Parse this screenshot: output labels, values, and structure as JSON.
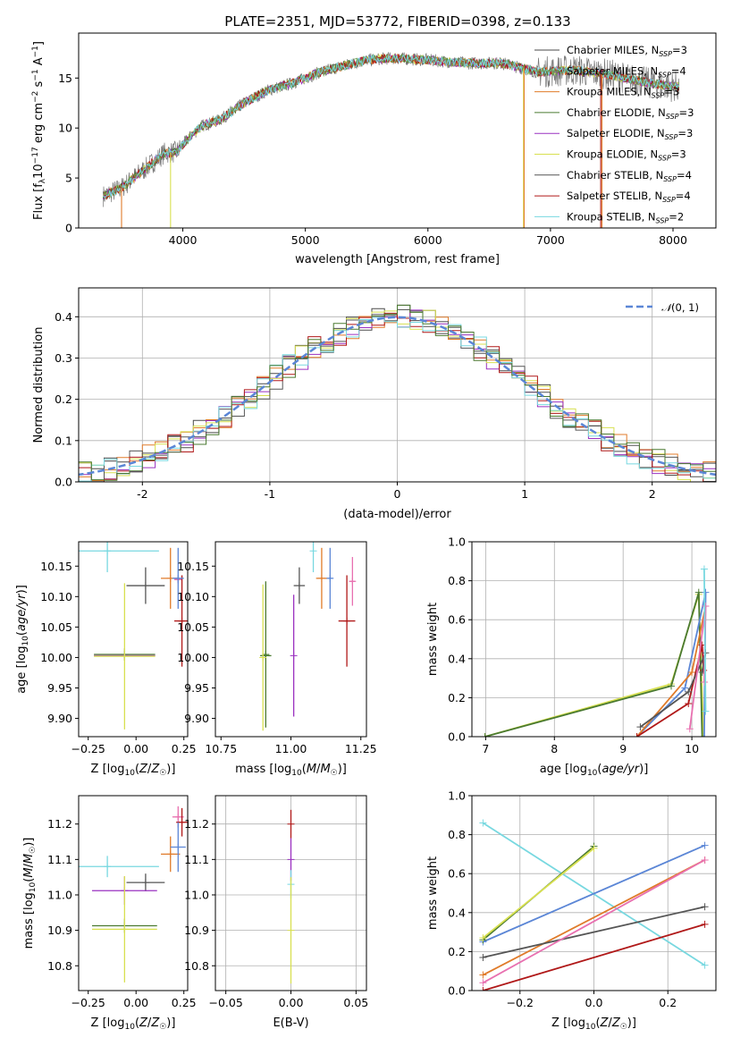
{
  "title": "PLATE=2351, MJD=53772, FIBERID=0398, z=0.133",
  "colors": {
    "Chabrier MILES": "#4a4a4a",
    "Salpeter MILES": "#6fa05a",
    "Kroupa MILES": "#e07b2a",
    "Chabrier ELODIE": "#4a7a30",
    "Salpeter ELODIE": "#9a30c0",
    "Kroupa ELODIE": "#d8e050",
    "Chabrier STELIB": "#555555",
    "Salpeter STELIB": "#b01818",
    "Kroupa STELIB": "#78d8e0",
    "blue": "#5b86d6",
    "pink": "#e870b0",
    "green": "#7ab850"
  },
  "chart_data": [
    {
      "type": "line",
      "id": "spectrum",
      "title": "PLATE=2351, MJD=53772, FIBERID=0398, z=0.133",
      "xlabel": "wavelength [Angstrom, rest frame]",
      "ylabel": "Flux [fλ10⁻¹⁷ erg cm⁻² s⁻¹ A⁻¹]",
      "xlim": [
        3150,
        8350
      ],
      "ylim": [
        0,
        19.5
      ],
      "xticks": [
        4000,
        5000,
        6000,
        7000,
        8000
      ],
      "yticks": [
        0,
        5,
        10,
        15
      ],
      "legend_placement": "right",
      "continuum": {
        "x": [
          3350,
          3500,
          3700,
          3850,
          3950,
          4050,
          4150,
          4300,
          4500,
          4700,
          4900,
          5100,
          5300,
          5500,
          5700,
          6000,
          6300,
          6600,
          6900,
          7200,
          7500,
          7800,
          8050
        ],
        "y": [
          3.2,
          4.0,
          6.0,
          7.5,
          7.6,
          9.0,
          10.2,
          10.8,
          12.5,
          13.8,
          14.5,
          15.5,
          16.2,
          16.8,
          17.0,
          16.8,
          16.5,
          16.5,
          15.6,
          15.8,
          15.3,
          14.5,
          14.1
        ]
      },
      "series": [
        {
          "name": "Chabrier MILES, Nₛₛₚ=3",
          "label_main": "Chabrier MILES, N",
          "label_sub": "SSP",
          "label_tail": "=3",
          "color_key": "Chabrier MILES"
        },
        {
          "name": "Salpeter MILES, Nₛₛₚ=4",
          "label_main": "Salpeter MILES, N",
          "label_sub": "SSP",
          "label_tail": "=4",
          "color_key": "Salpeter MILES"
        },
        {
          "name": "Kroupa MILES, Nₛₛₚ=3",
          "label_main": "Kroupa MILES, N",
          "label_sub": "SSP",
          "label_tail": "=3",
          "color_key": "Kroupa MILES"
        },
        {
          "name": "Chabrier ELODIE, Nₛₛₚ=3",
          "label_main": "Chabrier ELODIE, N",
          "label_sub": "SSP",
          "label_tail": "=3",
          "color_key": "Chabrier ELODIE"
        },
        {
          "name": "Salpeter ELODIE, Nₛₛₚ=3",
          "label_main": "Salpeter ELODIE, N",
          "label_sub": "SSP",
          "label_tail": "=3",
          "color_key": "Salpeter ELODIE"
        },
        {
          "name": "Kroupa ELODIE, Nₛₛₚ=3",
          "label_main": "Kroupa ELODIE, N",
          "label_sub": "SSP",
          "label_tail": "=3",
          "color_key": "Kroupa ELODIE"
        },
        {
          "name": "Chabrier STELIB, Nₛₛₚ=4",
          "label_main": "Chabrier STELIB, N",
          "label_sub": "SSP",
          "label_tail": "=4",
          "color_key": "Chabrier STELIB"
        },
        {
          "name": "Salpeter STELIB, Nₛₛₚ=4",
          "label_main": "Salpeter STELIB, N",
          "label_sub": "SSP",
          "label_tail": "=4",
          "color_key": "Salpeter STELIB"
        },
        {
          "name": "Kroupa STELIB, Nₛₛₚ=2",
          "label_main": "Kroupa STELIB, N",
          "label_sub": "SSP",
          "label_tail": "=2",
          "color_key": "Kroupa STELIB"
        }
      ]
    },
    {
      "type": "step",
      "id": "residuals",
      "xlabel": "(data-model)/error",
      "ylabel": "Normed distribution",
      "xlim": [
        -2.5,
        2.5
      ],
      "ylim": [
        0,
        0.47
      ],
      "xticks": [
        -2,
        -1,
        0,
        1,
        2
      ],
      "yticks": [
        0.0,
        0.1,
        0.2,
        0.3,
        0.4
      ],
      "grid": true,
      "legend_placement": "top-right",
      "reference": {
        "name": "N(0,1)",
        "color_key": "blue"
      },
      "bin_width": 0.1
    },
    {
      "type": "errorbar",
      "id": "age_vs_Z",
      "xlabel": "Z [log10(Z/Z☉)]",
      "ylabel": "age [log10(age/yr)]",
      "xlim": [
        -0.3,
        0.27
      ],
      "ylim": [
        9.87,
        10.19
      ],
      "xticks": [
        -0.25,
        0.0,
        0.25
      ],
      "yticks": [
        9.9,
        9.95,
        10.0,
        10.05,
        10.1,
        10.15
      ],
      "points": [
        {
          "x": -0.15,
          "xerr": 0.27,
          "y": 10.175,
          "yerr": 0.035,
          "color_key": "Kroupa STELIB"
        },
        {
          "x": 0.05,
          "xerr": 0.1,
          "y": 10.118,
          "yerr": 0.03,
          "color_key": "Chabrier STELIB"
        },
        {
          "x": 0.18,
          "xerr": 0.05,
          "y": 10.13,
          "yerr": 0.05,
          "color_key": "Kroupa MILES"
        },
        {
          "x": 0.22,
          "xerr": 0.02,
          "y": 10.128,
          "yerr": 0.006,
          "color_key": "pink"
        },
        {
          "x": 0.24,
          "xerr": 0.04,
          "y": 10.06,
          "yerr": 0.075,
          "color_key": "Salpeter STELIB"
        },
        {
          "x": 0.22,
          "xerr": 0.03,
          "y": 10.13,
          "yerr": 0.05,
          "color_key": "blue"
        },
        {
          "x": -0.06,
          "xerr": 0.16,
          "y": 10.005,
          "yerr": 0.01,
          "color_key": "Chabrier ELODIE"
        },
        {
          "x": -0.06,
          "xerr": 0.16,
          "y": 10.003,
          "yerr": 0.0,
          "color_key": "Salpeter ELODIE"
        },
        {
          "x": -0.06,
          "xerr": 0.16,
          "y": 10.002,
          "yerr": 0.12,
          "color_key": "Kroupa ELODIE"
        }
      ]
    },
    {
      "type": "errorbar",
      "id": "age_vs_mass",
      "xlabel": "mass [log10(M/M☉)]",
      "ylabel": "",
      "xlim": [
        10.73,
        11.27
      ],
      "ylim": [
        9.87,
        10.19
      ],
      "xticks": [
        10.75,
        11.0,
        11.25
      ],
      "yticks": [
        9.9,
        9.95,
        10.0,
        10.05,
        10.1,
        10.15
      ],
      "points": [
        {
          "x": 11.08,
          "xerr": 0.0,
          "y": 10.175,
          "yerr": 0.035,
          "color_key": "Kroupa STELIB"
        },
        {
          "x": 11.03,
          "xerr": 0.02,
          "y": 10.118,
          "yerr": 0.03,
          "color_key": "Chabrier STELIB"
        },
        {
          "x": 11.11,
          "xerr": 0.02,
          "y": 10.13,
          "yerr": 0.05,
          "color_key": "Kroupa MILES"
        },
        {
          "x": 11.22,
          "xerr": 0.01,
          "y": 10.125,
          "yerr": 0.04,
          "color_key": "pink"
        },
        {
          "x": 11.2,
          "xerr": 0.03,
          "y": 10.06,
          "yerr": 0.075,
          "color_key": "Salpeter STELIB"
        },
        {
          "x": 11.14,
          "xerr": 0.01,
          "y": 10.13,
          "yerr": 0.05,
          "color_key": "blue"
        },
        {
          "x": 10.91,
          "xerr": 0.0,
          "y": 10.005,
          "yerr": 0.12,
          "color_key": "Chabrier ELODIE"
        },
        {
          "x": 10.91,
          "xerr": 0.02,
          "y": 10.003,
          "yerr": 0.0,
          "color_key": "Chabrier ELODIE"
        },
        {
          "x": 11.01,
          "xerr": 0.0,
          "y": 10.003,
          "yerr": 0.1,
          "color_key": "Salpeter ELODIE"
        },
        {
          "x": 10.9,
          "xerr": 0.0,
          "y": 10.0,
          "yerr": 0.12,
          "color_key": "Kroupa ELODIE"
        }
      ]
    },
    {
      "type": "line",
      "id": "mw_vs_age",
      "xlabel": "age [log10(age/yr)]",
      "ylabel": "mass weight",
      "xlim": [
        6.8,
        10.35
      ],
      "ylim": [
        0.0,
        1.0
      ],
      "xticks": [
        7,
        8,
        9,
        10
      ],
      "yticks": [
        0.0,
        0.2,
        0.4,
        0.6,
        0.8,
        1.0
      ],
      "grid": true,
      "series": [
        {
          "color_key": "Kroupa ELODIE",
          "x": [
            6.99,
            9.7,
            10.1,
            10.17
          ],
          "y": [
            0.0,
            0.27,
            0.73,
            0.0
          ]
        },
        {
          "color_key": "Chabrier ELODIE",
          "x": [
            6.99,
            9.7,
            10.1,
            10.15
          ],
          "y": [
            0.0,
            0.26,
            0.74,
            0.0
          ]
        },
        {
          "color_key": "blue",
          "x": [
            9.2,
            9.9,
            10.2,
            10.18
          ],
          "y": [
            0.0,
            0.25,
            0.74,
            0.0
          ]
        },
        {
          "color_key": "Kroupa MILES",
          "x": [
            9.2,
            10.0,
            10.2
          ],
          "y": [
            0.0,
            0.33,
            0.67
          ]
        },
        {
          "color_key": "Salpeter STELIB",
          "x": [
            9.2,
            9.95,
            10.15,
            10.17
          ],
          "y": [
            0.0,
            0.17,
            0.47,
            0.34
          ]
        },
        {
          "color_key": "Chabrier STELIB",
          "x": [
            9.25,
            9.95,
            10.2,
            10.15
          ],
          "y": [
            0.05,
            0.23,
            0.43,
            0.33
          ]
        },
        {
          "color_key": "pink",
          "x": [
            9.97,
            10.2,
            10.18
          ],
          "y": [
            0.04,
            0.67,
            0.28
          ]
        },
        {
          "color_key": "Kroupa STELIB",
          "x": [
            10.18,
            10.2
          ],
          "y": [
            0.86,
            0.13
          ]
        }
      ]
    },
    {
      "type": "errorbar",
      "id": "mass_vs_Z",
      "xlabel": "Z [log10(Z/Z☉)]",
      "ylabel": "mass [log10(M/M☉)]",
      "xlim": [
        -0.3,
        0.27
      ],
      "ylim": [
        10.73,
        11.28
      ],
      "xticks": [
        -0.25,
        0.0,
        0.25
      ],
      "yticks": [
        10.8,
        10.9,
        11.0,
        11.1,
        11.2
      ],
      "points": [
        {
          "x": -0.15,
          "xerr": 0.27,
          "y": 11.08,
          "yerr": 0.03,
          "color_key": "Kroupa STELIB"
        },
        {
          "x": 0.05,
          "xerr": 0.1,
          "y": 11.035,
          "yerr": 0.025,
          "color_key": "Chabrier STELIB"
        },
        {
          "x": 0.18,
          "xerr": 0.05,
          "y": 11.115,
          "yerr": 0.05,
          "color_key": "Kroupa MILES"
        },
        {
          "x": 0.22,
          "xerr": 0.03,
          "y": 11.22,
          "yerr": 0.03,
          "color_key": "pink"
        },
        {
          "x": 0.24,
          "xerr": 0.03,
          "y": 11.205,
          "yerr": 0.04,
          "color_key": "Salpeter STELIB"
        },
        {
          "x": 0.22,
          "xerr": 0.04,
          "y": 11.135,
          "yerr": 0.07,
          "color_key": "blue"
        },
        {
          "x": -0.06,
          "xerr": 0.17,
          "y": 11.012,
          "yerr": 0.04,
          "color_key": "Salpeter ELODIE"
        },
        {
          "x": -0.06,
          "xerr": 0.17,
          "y": 10.913,
          "yerr": 0.02,
          "color_key": "Chabrier ELODIE"
        },
        {
          "x": -0.06,
          "xerr": 0.17,
          "y": 10.903,
          "yerr": 0.15,
          "color_key": "Kroupa ELODIE"
        }
      ]
    },
    {
      "type": "errorbar",
      "id": "mass_vs_ebv",
      "xlabel": "E(B-V)",
      "ylabel": "",
      "xlim": [
        -0.058,
        0.058
      ],
      "ylim": [
        10.73,
        11.28
      ],
      "xticks": [
        -0.05,
        0.0,
        0.05
      ],
      "yticks": [
        10.8,
        10.9,
        11.0,
        11.1,
        11.2
      ],
      "grid": true,
      "points": [
        {
          "x": 0.0,
          "xerr": 0.0,
          "y": 11.2,
          "yerr": 0.04,
          "color_key": "Salpeter STELIB"
        },
        {
          "x": 0.0,
          "xerr": 0.0,
          "y": 11.1,
          "yerr": 0.06,
          "color_key": "Salpeter ELODIE"
        },
        {
          "x": 0.0,
          "xerr": 0.0,
          "y": 11.03,
          "yerr": 0.04,
          "color_key": "Kroupa STELIB"
        },
        {
          "x": 0.0,
          "xerr": 0.0,
          "y": 10.9,
          "yerr": 0.15,
          "color_key": "Kroupa ELODIE"
        }
      ]
    },
    {
      "type": "line",
      "id": "mw_vs_Z",
      "xlabel": "Z [log10(Z/Z☉)]",
      "ylabel": "mass weight",
      "xlim": [
        -0.33,
        0.33
      ],
      "ylim": [
        0.0,
        1.0
      ],
      "xticks": [
        -0.2,
        0.0,
        0.2
      ],
      "yticks": [
        0.0,
        0.2,
        0.4,
        0.6,
        0.8,
        1.0
      ],
      "grid": true,
      "series": [
        {
          "color_key": "Kroupa STELIB",
          "x": [
            -0.3,
            0.3
          ],
          "y": [
            0.86,
            0.13
          ]
        },
        {
          "color_key": "blue",
          "x": [
            -0.3,
            0.3
          ],
          "y": [
            0.25,
            0.745
          ]
        },
        {
          "color_key": "Kroupa MILES",
          "x": [
            -0.3,
            0.3
          ],
          "y": [
            0.08,
            0.67
          ]
        },
        {
          "color_key": "Chabrier STELIB",
          "x": [
            -0.3,
            0.3
          ],
          "y": [
            0.17,
            0.43
          ]
        },
        {
          "color_key": "Salpeter STELIB",
          "x": [
            -0.3,
            0.3
          ],
          "y": [
            0.0,
            0.34
          ]
        },
        {
          "color_key": "pink",
          "x": [
            -0.3,
            0.3
          ],
          "y": [
            0.04,
            0.67
          ]
        },
        {
          "color_key": "Chabrier ELODIE",
          "x": [
            -0.3,
            0.0
          ],
          "y": [
            0.26,
            0.74
          ]
        },
        {
          "color_key": "Kroupa ELODIE",
          "x": [
            -0.3,
            0.0
          ],
          "y": [
            0.27,
            0.73
          ]
        }
      ]
    }
  ],
  "labels": {
    "spec_xlabel": "wavelength [Angstrom, rest frame]",
    "hist_xlabel": "(data-model)/error",
    "hist_ylabel": "Normed distribution",
    "mw_ylabel": "mass weight",
    "ebv_xlabel": "E(B-V)"
  }
}
